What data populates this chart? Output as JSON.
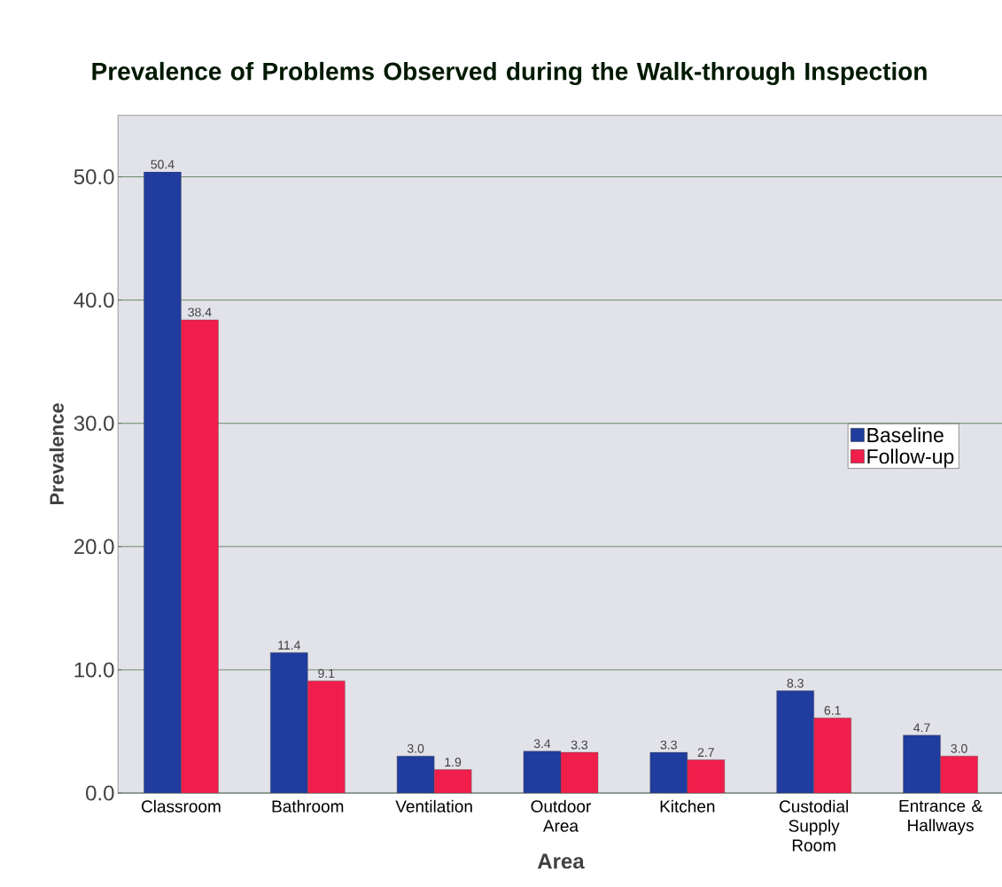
{
  "chart_data": {
    "type": "bar",
    "title": "Prevalence of Problems Observed during the Walk-through Inspection",
    "xlabel": "Area",
    "ylabel": "Prevalence",
    "categories": [
      "Classroom",
      "Bathroom",
      "Ventilation",
      "Outdoor Area",
      "Kitchen",
      "Custodial Supply Room",
      "Entrance & Hallways"
    ],
    "series": [
      {
        "name": "Baseline",
        "color": "#1f3c9e",
        "values": [
          50.4,
          11.4,
          3.0,
          3.4,
          3.3,
          8.3,
          4.7
        ],
        "value_labels": [
          "50.4",
          "11.4",
          "3.0",
          "3.4",
          "3.3",
          "8.3",
          "4.7"
        ]
      },
      {
        "name": "Follow-up",
        "color": "#f01e4b",
        "values": [
          38.4,
          9.1,
          1.9,
          3.3,
          2.7,
          6.1,
          3.0
        ],
        "value_labels": [
          "38.4",
          "9.1",
          "1.9",
          "3.3",
          "2.7",
          "6.1",
          "3.0"
        ]
      }
    ],
    "ylim": [
      0,
      55
    ],
    "yticks": [
      {
        "value": 0,
        "label": "0.0"
      },
      {
        "value": 10,
        "label": "10.0"
      },
      {
        "value": 20,
        "label": "20.0"
      },
      {
        "value": 30,
        "label": "30.0"
      },
      {
        "value": 40,
        "label": "40.0"
      },
      {
        "value": 50,
        "label": "50.0"
      }
    ],
    "grid": "y",
    "legend": "right"
  }
}
